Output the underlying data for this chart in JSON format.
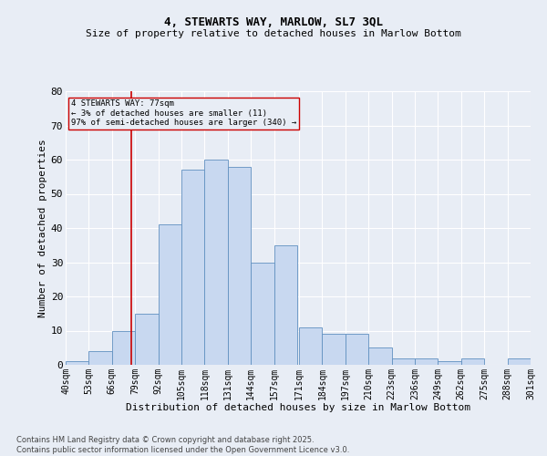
{
  "title": "4, STEWARTS WAY, MARLOW, SL7 3QL",
  "subtitle": "Size of property relative to detached houses in Marlow Bottom",
  "xlabel": "Distribution of detached houses by size in Marlow Bottom",
  "ylabel": "Number of detached properties",
  "annotation_line": 77,
  "annotation_text": "4 STEWARTS WAY: 77sqm\n← 3% of detached houses are smaller (11)\n97% of semi-detached houses are larger (340) →",
  "bin_edges": [
    40,
    53,
    66,
    79,
    92,
    105,
    118,
    131,
    144,
    157,
    171,
    184,
    197,
    210,
    223,
    236,
    249,
    262,
    275,
    288,
    301
  ],
  "bin_labels": [
    "40sqm",
    "53sqm",
    "66sqm",
    "79sqm",
    "92sqm",
    "105sqm",
    "118sqm",
    "131sqm",
    "144sqm",
    "157sqm",
    "171sqm",
    "184sqm",
    "197sqm",
    "210sqm",
    "223sqm",
    "236sqm",
    "249sqm",
    "262sqm",
    "275sqm",
    "288sqm",
    "301sqm"
  ],
  "counts": [
    1,
    4,
    10,
    15,
    41,
    57,
    60,
    58,
    30,
    35,
    11,
    9,
    9,
    5,
    2,
    2,
    1,
    2,
    0,
    2
  ],
  "bar_facecolor": "#c8d8f0",
  "bar_edgecolor": "#6090c0",
  "line_color": "#cc0000",
  "bg_color": "#e8edf5",
  "grid_color": "#ffffff",
  "footer": "Contains HM Land Registry data © Crown copyright and database right 2025.\nContains public sector information licensed under the Open Government Licence v3.0.",
  "ylim": [
    0,
    80
  ],
  "yticks": [
    0,
    10,
    20,
    30,
    40,
    50,
    60,
    70,
    80
  ],
  "title_fontsize": 9,
  "subtitle_fontsize": 8,
  "footer_fontsize": 6
}
